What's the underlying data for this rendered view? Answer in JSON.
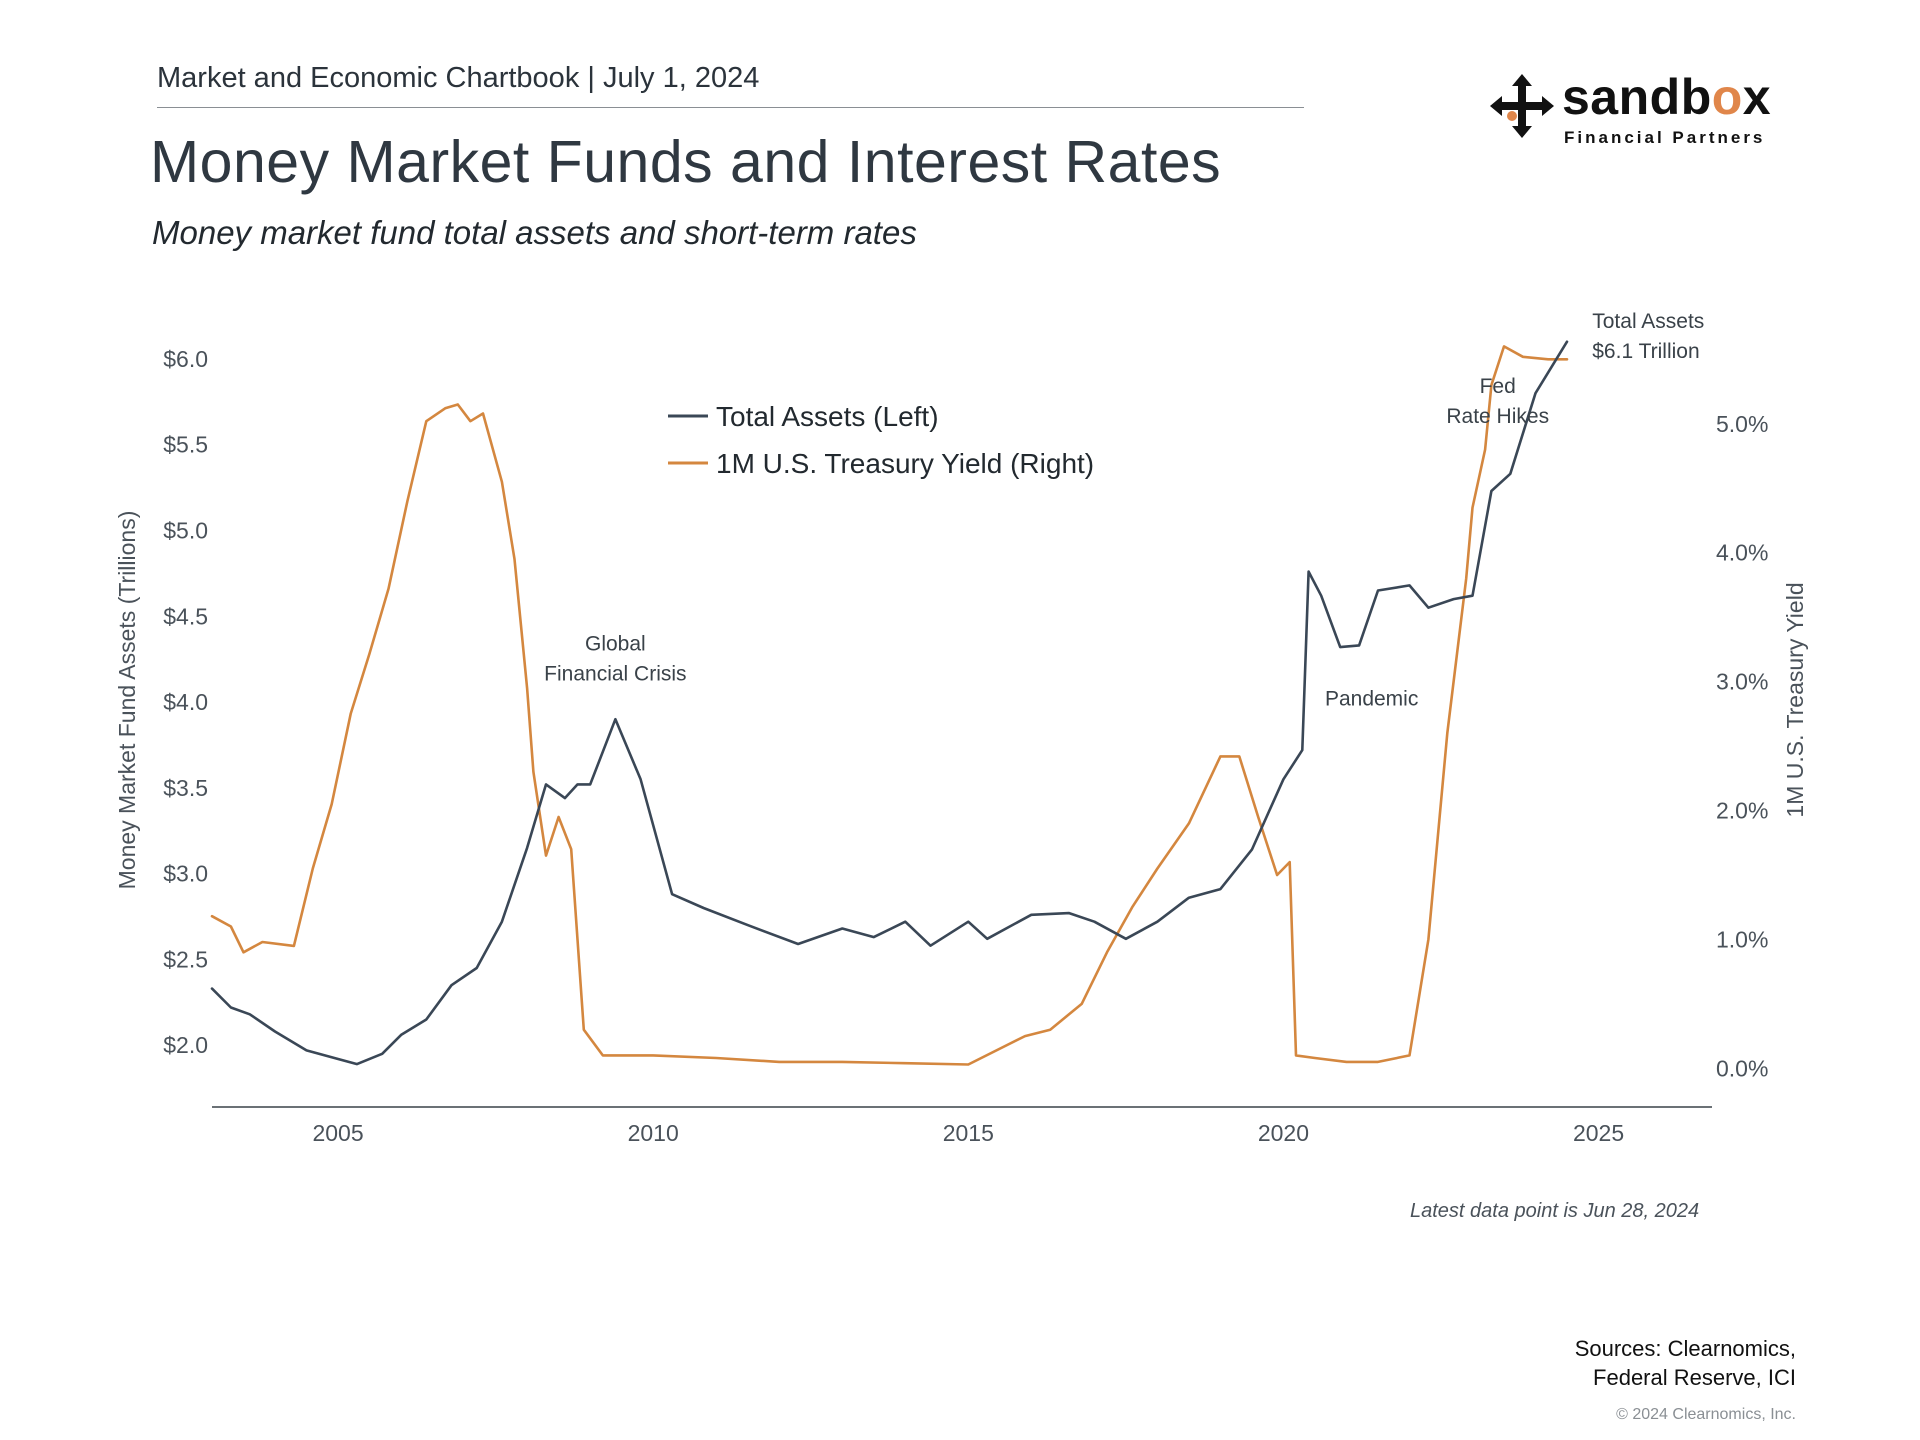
{
  "header": {
    "chartbook_label": "Market and Economic Chartbook | July 1, 2024",
    "title": "Money Market Funds and Interest Rates",
    "subtitle": "Money market fund total assets and short-term rates"
  },
  "logo": {
    "word_part1": "sandb",
    "word_o": "o",
    "word_part2": "x",
    "tagline": "Financial Partners",
    "brand_accent": "#e0864a"
  },
  "footer": {
    "latest": "Latest data point is Jun 28, 2024",
    "sources_line1": "Sources: Clearnomics,",
    "sources_line2": "Federal Reserve, ICI",
    "copyright": "© 2024 Clearnomics, Inc."
  },
  "chart_data": {
    "type": "line",
    "title": "Money Market Funds and Interest Rates",
    "subtitle": "Money market fund total assets and short-term rates",
    "ylabel_left": "Money Market Fund Assets (Trillions)",
    "ylabel_right": "1M U.S. Treasury Yield",
    "xlim": [
      2003.0,
      2026.8
    ],
    "ylim_left": [
      1.64,
      6.11
    ],
    "ylim_right": [
      -0.3,
      5.65
    ],
    "xticks": [
      2005,
      2010,
      2015,
      2020,
      2025
    ],
    "xtick_labels": [
      "2005",
      "2010",
      "2015",
      "2020",
      "2025"
    ],
    "yticks_left": [
      2.0,
      2.5,
      3.0,
      3.5,
      4.0,
      4.5,
      5.0,
      5.5,
      6.0
    ],
    "ytick_labels_left": [
      "$2.0",
      "$2.5",
      "$3.0",
      "$3.5",
      "$4.0",
      "$4.5",
      "$5.0",
      "$5.5",
      "$6.0"
    ],
    "yticks_right": [
      0,
      1,
      2,
      3,
      4,
      5
    ],
    "ytick_labels_right": [
      "0.0%",
      "1.0%",
      "2.0%",
      "3.0%",
      "4.0%",
      "5.0%"
    ],
    "grid": false,
    "legend": {
      "placement": "top-center",
      "entries": [
        "Total Assets (Left)",
        "1M U.S. Treasury Yield (Right)"
      ]
    },
    "annotations": [
      {
        "lines": [
          "Global",
          "Financial Crisis"
        ],
        "x": 2009.4,
        "y_left": 4.3
      },
      {
        "lines": [
          "Pandemic"
        ],
        "x": 2021.4,
        "y_left": 3.98
      },
      {
        "lines": [
          "Fed",
          "Rate Hikes"
        ],
        "x": 2023.4,
        "y_left": 5.8
      },
      {
        "lines": [
          "Total Assets",
          "$6.1 Trillion"
        ],
        "x": 2024.9,
        "y_left": 6.18
      }
    ],
    "series": [
      {
        "name": "Total Assets (Left)",
        "axis": "left",
        "color": "#3a4756",
        "x": [
          2003.0,
          2003.3,
          2003.6,
          2004.0,
          2004.5,
          2005.0,
          2005.3,
          2005.7,
          2006.0,
          2006.4,
          2006.8,
          2007.2,
          2007.6,
          2008.0,
          2008.3,
          2008.6,
          2008.8,
          2009.0,
          2009.4,
          2009.8,
          2010.3,
          2010.8,
          2011.5,
          2012.3,
          2013.0,
          2013.5,
          2014.0,
          2014.4,
          2015.0,
          2015.3,
          2016.0,
          2016.6,
          2017.0,
          2017.5,
          2018.0,
          2018.5,
          2019.0,
          2019.5,
          2020.0,
          2020.3,
          2020.4,
          2020.6,
          2020.9,
          2021.2,
          2021.5,
          2022.0,
          2022.3,
          2022.7,
          2023.0,
          2023.3,
          2023.6,
          2024.0,
          2024.5
        ],
        "y": [
          2.33,
          2.22,
          2.18,
          2.08,
          1.97,
          1.92,
          1.89,
          1.95,
          2.06,
          2.15,
          2.35,
          2.45,
          2.72,
          3.15,
          3.52,
          3.44,
          3.52,
          3.52,
          3.9,
          3.55,
          2.88,
          2.8,
          2.7,
          2.59,
          2.68,
          2.63,
          2.72,
          2.58,
          2.72,
          2.62,
          2.76,
          2.77,
          2.72,
          2.62,
          2.72,
          2.86,
          2.91,
          3.14,
          3.55,
          3.72,
          4.76,
          4.62,
          4.32,
          4.33,
          4.65,
          4.68,
          4.55,
          4.6,
          4.62,
          5.23,
          5.33,
          5.8,
          6.1
        ]
      },
      {
        "name": "1M U.S. Treasury Yield (Right)",
        "axis": "right",
        "color": "#d4873f",
        "x": [
          2003.0,
          2003.3,
          2003.5,
          2003.8,
          2004.3,
          2004.6,
          2004.9,
          2005.2,
          2005.5,
          2005.8,
          2006.1,
          2006.4,
          2006.7,
          2006.9,
          2007.1,
          2007.3,
          2007.6,
          2007.8,
          2008.0,
          2008.1,
          2008.3,
          2008.5,
          2008.7,
          2008.9,
          2009.2,
          2010.0,
          2011.0,
          2012.0,
          2013.0,
          2014.0,
          2015.0,
          2015.9,
          2016.3,
          2016.8,
          2017.2,
          2017.6,
          2018.0,
          2018.5,
          2019.0,
          2019.3,
          2019.6,
          2019.9,
          2020.1,
          2020.2,
          2020.5,
          2021.0,
          2021.5,
          2022.0,
          2022.3,
          2022.6,
          2022.9,
          2023.0,
          2023.2,
          2023.3,
          2023.5,
          2023.8,
          2024.2,
          2024.5
        ],
        "y": [
          1.18,
          1.1,
          0.9,
          0.98,
          0.95,
          1.55,
          2.05,
          2.75,
          3.22,
          3.72,
          4.4,
          5.02,
          5.12,
          5.15,
          5.02,
          5.08,
          4.55,
          3.95,
          2.95,
          2.3,
          1.65,
          1.95,
          1.7,
          0.3,
          0.1,
          0.1,
          0.08,
          0.05,
          0.05,
          0.04,
          0.03,
          0.25,
          0.3,
          0.5,
          0.9,
          1.25,
          1.55,
          1.9,
          2.42,
          2.42,
          1.95,
          1.5,
          1.6,
          0.1,
          0.08,
          0.05,
          0.05,
          0.1,
          1.0,
          2.6,
          3.8,
          4.35,
          4.8,
          5.3,
          5.6,
          5.52,
          5.5,
          5.5
        ]
      }
    ]
  }
}
